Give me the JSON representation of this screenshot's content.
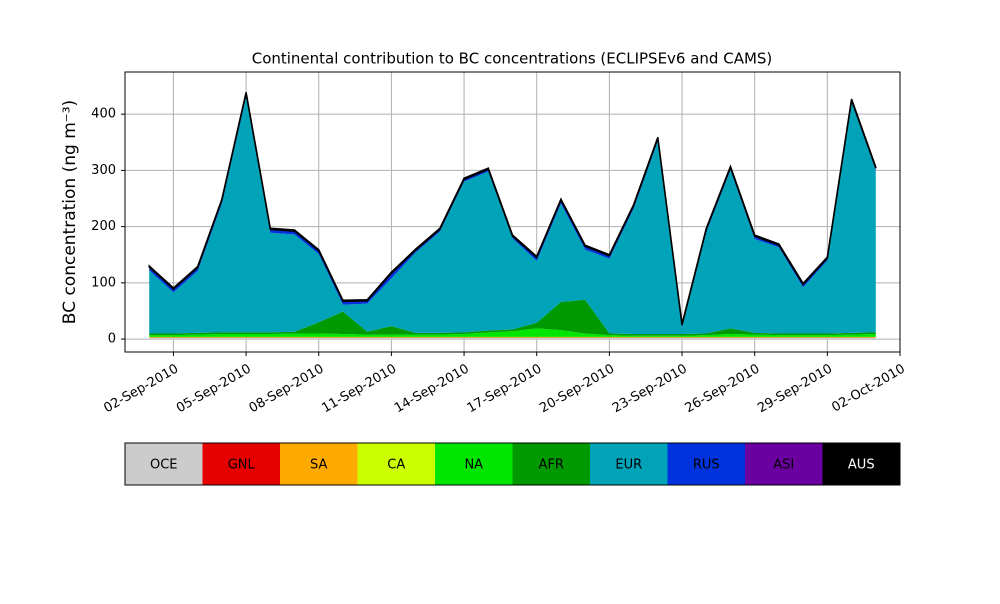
{
  "chart_data": {
    "type": "stacked-area",
    "title": "Continental contribution to BC concentrations (ECLIPSEv6 and CAMS)",
    "y_label": "BC concentration (ng m⁻³)",
    "x": [
      "01-Sep-2010",
      "02-Sep-2010",
      "03-Sep-2010",
      "04-Sep-2010",
      "05-Sep-2010",
      "06-Sep-2010",
      "07-Sep-2010",
      "08-Sep-2010",
      "09-Sep-2010",
      "10-Sep-2010",
      "11-Sep-2010",
      "12-Sep-2010",
      "13-Sep-2010",
      "14-Sep-2010",
      "15-Sep-2010",
      "16-Sep-2010",
      "17-Sep-2010",
      "18-Sep-2010",
      "19-Sep-2010",
      "20-Sep-2010",
      "21-Sep-2010",
      "22-Sep-2010",
      "23-Sep-2010",
      "24-Sep-2010",
      "25-Sep-2010",
      "26-Sep-2010",
      "27-Sep-2010",
      "28-Sep-2010",
      "29-Sep-2010",
      "30-Sep-2010",
      "01-Oct-2010"
    ],
    "series": [
      {
        "name": "OCE",
        "color": "#cccccc",
        "values": [
          2,
          2,
          2,
          2,
          2,
          2,
          2,
          2,
          2,
          2,
          2,
          2,
          2,
          2,
          2,
          2,
          2,
          2,
          2,
          2,
          2,
          2,
          2,
          2,
          2,
          2,
          2,
          2,
          2,
          2,
          2
        ]
      },
      {
        "name": "GNL",
        "color": "#e60000",
        "values": [
          0.5,
          0.5,
          0.5,
          0.5,
          0.5,
          0.5,
          0.5,
          0.5,
          0.5,
          0.5,
          0.5,
          0.5,
          0.5,
          0.5,
          0.5,
          0.5,
          0.5,
          0.5,
          0.5,
          0.5,
          0.5,
          0.5,
          0.5,
          0.5,
          0.5,
          0.5,
          0.5,
          0.5,
          0.5,
          0.5,
          0.5
        ]
      },
      {
        "name": "SA",
        "color": "#ffaa00",
        "values": [
          0.5,
          0.5,
          0.5,
          0.5,
          0.5,
          0.5,
          0.5,
          0.5,
          0.5,
          0.5,
          0.5,
          0.5,
          0.5,
          0.5,
          0.5,
          0.5,
          0.5,
          0.5,
          0.5,
          0.5,
          0.5,
          0.5,
          0.5,
          0.5,
          0.5,
          0.5,
          0.5,
          0.5,
          0.5,
          0.5,
          0.5
        ]
      },
      {
        "name": "CA",
        "color": "#ccff00",
        "values": [
          1,
          1,
          1,
          1,
          1,
          1,
          1,
          1,
          1,
          1,
          1,
          1,
          1,
          1,
          1,
          1,
          1,
          1,
          1,
          1,
          1,
          1,
          1,
          1,
          1,
          1,
          1,
          1,
          1,
          1,
          1
        ]
      },
      {
        "name": "NA",
        "color": "#00e600",
        "values": [
          3,
          3,
          4,
          5,
          5,
          5,
          6,
          6,
          5,
          4,
          4,
          4,
          4,
          5,
          8,
          10,
          15,
          12,
          6,
          3,
          2,
          2,
          2,
          3,
          5,
          4,
          3,
          3,
          3,
          4,
          5
        ]
      },
      {
        "name": "AFR",
        "color": "#009900",
        "values": [
          3,
          3,
          3,
          3,
          3,
          3,
          3,
          20,
          40,
          5,
          15,
          3,
          3,
          3,
          3,
          3,
          10,
          50,
          60,
          3,
          3,
          3,
          3,
          3,
          10,
          3,
          3,
          3,
          3,
          3,
          3
        ]
      },
      {
        "name": "EUR",
        "color": "#00a3b8",
        "values": [
          112,
          73,
          110,
          229,
          419,
          177,
          173,
          121,
          12,
          50,
          85,
          143,
          180,
          268,
          283,
          162,
          110,
          175,
          89,
          133,
          223,
          343,
          12,
          180,
          282,
          167,
          153,
          82,
          130,
          410,
          288
        ]
      },
      {
        "name": "RUS",
        "color": "#0033dd",
        "values": [
          5,
          5,
          5,
          5,
          5,
          5,
          5,
          5,
          5,
          4,
          8,
          3,
          3,
          3,
          3,
          3,
          5,
          5,
          5,
          4,
          4,
          4,
          3,
          4,
          3,
          4,
          3,
          4,
          3,
          3,
          3
        ]
      },
      {
        "name": "ASI",
        "color": "#6a009f",
        "values": [
          1,
          1,
          1,
          1,
          1,
          1,
          1,
          1,
          1,
          1,
          1,
          1,
          1,
          1,
          1,
          1,
          1,
          1,
          1,
          1,
          1,
          1,
          1,
          1,
          1,
          1,
          1,
          1,
          1,
          1,
          1
        ]
      },
      {
        "name": "AUS",
        "color": "#000000",
        "values": [
          2,
          2,
          2,
          2,
          2,
          2,
          2,
          2,
          2,
          2,
          2,
          2,
          2,
          2,
          2,
          2,
          2,
          2,
          2,
          2,
          2,
          2,
          2,
          2,
          2,
          2,
          2,
          2,
          2,
          2,
          2
        ]
      }
    ],
    "xlim": [
      "31-Aug-2010",
      "02-Oct-2010"
    ],
    "xticks": [
      "02-Sep-2010",
      "05-Sep-2010",
      "08-Sep-2010",
      "11-Sep-2010",
      "14-Sep-2010",
      "17-Sep-2010",
      "20-Sep-2010",
      "23-Sep-2010",
      "26-Sep-2010",
      "29-Sep-2010",
      "02-Oct-2010"
    ],
    "ylim": [
      -23,
      475
    ],
    "yticks": [
      0,
      100,
      200,
      300,
      400
    ],
    "grid": true
  }
}
